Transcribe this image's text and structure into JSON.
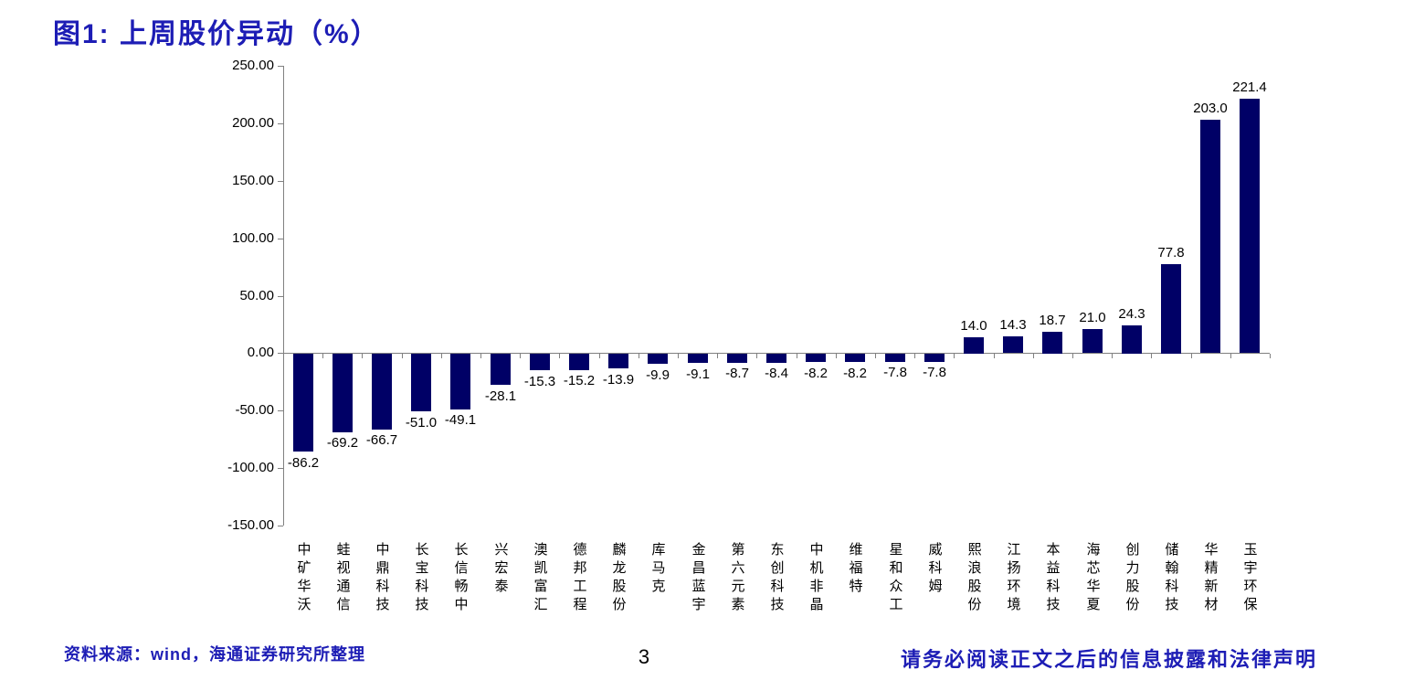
{
  "page": {
    "footer_source": "资料来源：wind，海通证券研究所整理",
    "page_number": "3",
    "disclaimer": "请务必阅读正文之后的信息披露和法律声明"
  },
  "chart_data": {
    "type": "bar",
    "title": "图1: 上周股价异动（%）",
    "categories": [
      "中矿华沃",
      "蛙视通信",
      "中鼎科技",
      "长宝科技",
      "长信畅中",
      "兴宏泰",
      "澳凯富汇",
      "德邦工程",
      "麟龙股份",
      "库马克",
      "金昌蓝宇",
      "第六元素",
      "东创科技",
      "中机非晶",
      "维福特",
      "星和众工",
      "威科姆",
      "熙浪股份",
      "江扬环境",
      "本益科技",
      "海芯华夏",
      "创力股份",
      "储翰科技",
      "华精新材",
      "玉宇环保"
    ],
    "values": [
      -86.2,
      -69.2,
      -66.7,
      -51.0,
      -49.1,
      -28.1,
      -15.3,
      -15.2,
      -13.9,
      -9.9,
      -9.1,
      -8.7,
      -8.4,
      -8.2,
      -8.2,
      -7.8,
      -7.8,
      14.0,
      14.3,
      18.7,
      21.0,
      24.3,
      77.8,
      203.0,
      221.4
    ],
    "value_labels": [
      "-86.2",
      "-69.2",
      "-66.7",
      "-51.0",
      "-49.1",
      "-28.1",
      "-15.3",
      "-15.2",
      "-13.9",
      "-9.9",
      "-9.1",
      "-8.7",
      "-8.4",
      "-8.2",
      "-8.2",
      "-7.8",
      "-7.8",
      "14.0",
      "14.3",
      "18.7",
      "21.0",
      "24.3",
      "77.8",
      "203.0",
      "221.4"
    ],
    "xlabel": "",
    "ylabel": "",
    "ylim": [
      -150,
      250
    ],
    "yticks": [
      250,
      200,
      150,
      100,
      50,
      0,
      -50,
      -100,
      -150
    ],
    "ytick_labels": [
      "250.00",
      "200.00",
      "150.00",
      "100.00",
      "50.00",
      "0.00",
      "-50.00",
      "-100.00",
      "-150.00"
    ],
    "grid": false,
    "legend": false,
    "bar_color": "#000066",
    "axis_color": "#808080",
    "title_color": "#1d1db5",
    "label_color": "#000000"
  }
}
